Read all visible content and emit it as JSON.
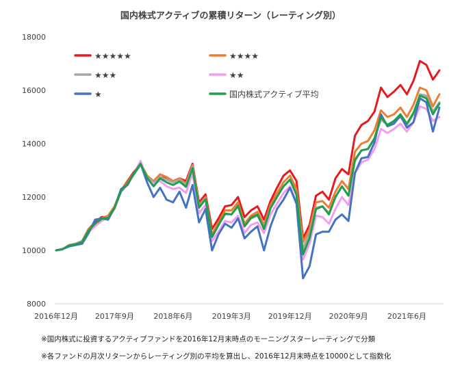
{
  "chart_data": {
    "type": "line",
    "title": "国内株式アクティブの累積リターン（レーティング別）",
    "xlabel": "",
    "ylabel": "",
    "ylim": [
      8000,
      18000
    ],
    "yticks": [
      8000,
      10000,
      12000,
      14000,
      16000,
      18000
    ],
    "ytick_labels": [
      "8000",
      "10000",
      "12000",
      "14000",
      "16000",
      "18000"
    ],
    "x_tick_labels": [
      "2016年12月",
      "2017年9月",
      "2018年6月",
      "2019年3月",
      "2019年12月",
      "2020年9月",
      "2021年6月"
    ],
    "x_tick_index": [
      0,
      9,
      18,
      27,
      36,
      45,
      54
    ],
    "num_points": 60,
    "grid": false,
    "legend_position": "top",
    "series": [
      {
        "name": "★★★★★",
        "color": "#e8191e",
        "values": [
          10000,
          10050,
          10200,
          10250,
          10350,
          10800,
          11050,
          11250,
          11250,
          11650,
          12250,
          12600,
          12950,
          13250,
          12800,
          12550,
          12750,
          12700,
          12600,
          12700,
          12600,
          13250,
          11800,
          12100,
          10800,
          11200,
          11650,
          11700,
          12000,
          11250,
          11500,
          11650,
          11150,
          11850,
          12350,
          12800,
          13000,
          12600,
          10450,
          10950,
          12050,
          12200,
          11900,
          12700,
          13050,
          12850,
          14300,
          14700,
          14850,
          15200,
          16100,
          15750,
          15950,
          16200,
          15850,
          16350,
          17100,
          16950,
          16400,
          16750
        ]
      },
      {
        "name": "★★★★",
        "color": "#ee7d31",
        "values": [
          10000,
          10050,
          10200,
          10250,
          10330,
          10800,
          11000,
          11200,
          11300,
          11650,
          12250,
          12550,
          12900,
          13250,
          12800,
          12600,
          12850,
          12750,
          12600,
          12700,
          12500,
          13200,
          11700,
          12000,
          10600,
          11050,
          11500,
          11500,
          11800,
          11000,
          11300,
          11450,
          10950,
          11700,
          12150,
          12550,
          12800,
          12300,
          10300,
          10800,
          11800,
          11850,
          11600,
          12200,
          12600,
          12300,
          13700,
          14000,
          14100,
          14500,
          15250,
          15000,
          15100,
          15350,
          15000,
          15450,
          16100,
          16000,
          15400,
          15850
        ]
      },
      {
        "name": "★★★",
        "color": "#a6a6a6",
        "values": [
          10000,
          10050,
          10200,
          10250,
          10330,
          10750,
          10950,
          11150,
          11200,
          11600,
          12200,
          12500,
          12850,
          13200,
          12750,
          12550,
          12750,
          12650,
          12550,
          12650,
          12450,
          13150,
          11650,
          11950,
          10500,
          10950,
          11350,
          11350,
          11650,
          10900,
          11200,
          11300,
          10850,
          11600,
          12000,
          12400,
          12650,
          12100,
          10050,
          10650,
          11600,
          11650,
          11400,
          12000,
          12400,
          12050,
          13350,
          13750,
          13800,
          14200,
          14900,
          14700,
          14850,
          15000,
          14700,
          15100,
          15850,
          15800,
          15200,
          15550
        ]
      },
      {
        "name": "★★",
        "color": "#f49cf2",
        "values": [
          10000,
          10050,
          10150,
          10230,
          10300,
          10700,
          10900,
          11100,
          11250,
          11550,
          12200,
          12450,
          12900,
          13350,
          12650,
          12500,
          12600,
          12400,
          12300,
          12350,
          12150,
          12900,
          11400,
          11700,
          10350,
          10700,
          11100,
          11050,
          11300,
          10650,
          10950,
          11050,
          10650,
          11350,
          11750,
          12150,
          12400,
          11800,
          9650,
          10250,
          11300,
          11250,
          11000,
          11550,
          12000,
          11700,
          12900,
          13300,
          13400,
          13800,
          14550,
          14400,
          14550,
          14750,
          14450,
          14800,
          15400,
          15300,
          14850,
          15000
        ]
      },
      {
        "name": "★",
        "color": "#4472c4",
        "values": [
          10000,
          10050,
          10150,
          10200,
          10250,
          10650,
          11150,
          11200,
          11150,
          11600,
          12300,
          12450,
          12900,
          13250,
          12550,
          12000,
          12350,
          11900,
          11800,
          12200,
          11600,
          12450,
          11050,
          11550,
          10000,
          10600,
          11000,
          10850,
          11200,
          10450,
          10700,
          10900,
          10000,
          10900,
          11550,
          11900,
          12350,
          11750,
          8950,
          9400,
          10600,
          10700,
          10700,
          11150,
          11350,
          11100,
          12900,
          13450,
          13500,
          14050,
          15100,
          14650,
          14750,
          15050,
          14600,
          14800,
          15700,
          15550,
          14450,
          15350
        ]
      },
      {
        "name": "国内株式アクティブ平均",
        "color": "#1f9e4c",
        "values": [
          10000,
          10050,
          10180,
          10230,
          10310,
          10750,
          11000,
          11180,
          11220,
          11600,
          12220,
          12500,
          12880,
          13250,
          12720,
          12400,
          12700,
          12550,
          12450,
          12580,
          12380,
          13080,
          11600,
          11920,
          10500,
          10950,
          11380,
          11350,
          11680,
          10900,
          11220,
          11350,
          10800,
          11580,
          12000,
          12400,
          12650,
          12080,
          9850,
          10450,
          11550,
          11650,
          11350,
          12000,
          12400,
          12050,
          13400,
          13750,
          13800,
          14200,
          15000,
          14700,
          14850,
          15100,
          14750,
          15150,
          15800,
          15700,
          15100,
          15500
        ]
      }
    ]
  },
  "notes": [
    "※国内株式に投資するアクティブファンドを2016年12月末時点のモーニングスターレーティングで分類",
    "※各ファンドの月次リターンからレーティング別の平均を算出し、2016年12月末時点を10000として指数化"
  ]
}
